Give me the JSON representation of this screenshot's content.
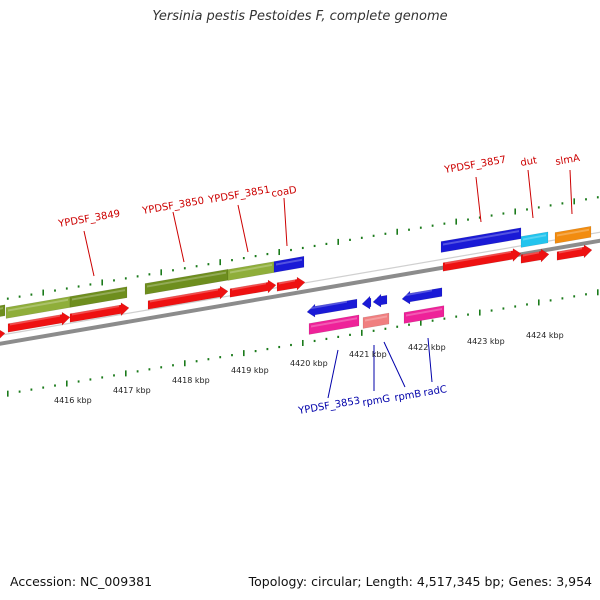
{
  "title": "Yersinia pestis Pestoides F, complete genome",
  "footer": {
    "accession": "Accession: NC_009381",
    "summary": "Topology: circular; Length: 4,517,345 bp; Genes: 3,954"
  },
  "colors": {
    "label_top": "#cc0000",
    "label_bottom": "#0000aa",
    "olive": "#6e8e1e",
    "olive_light": "#8fae3a",
    "blue": "#1a1ad6",
    "cyan": "#22c4ee",
    "orange": "#f28c10",
    "red": "#ee1111",
    "pink": "#ee2299",
    "salmon": "#f07f80",
    "backbone": "#8c8c8c",
    "tick": "#1a7a1a"
  },
  "kbp_labels": [
    "4416 kbp",
    "4417 kbp",
    "4418 kbp",
    "4419 kbp",
    "4420 kbp",
    "4421 kbp",
    "4422 kbp",
    "4423 kbp",
    "4424 kbp"
  ],
  "top_labels": [
    "YPDSF_3849",
    "YPDSF_3850",
    "YPDSF_3851",
    "coaD",
    "YPDSF_3857",
    "dut",
    "slmA"
  ],
  "bottom_labels": [
    "YPDSF_3853",
    "rpmG",
    "rpmB",
    "radC"
  ]
}
